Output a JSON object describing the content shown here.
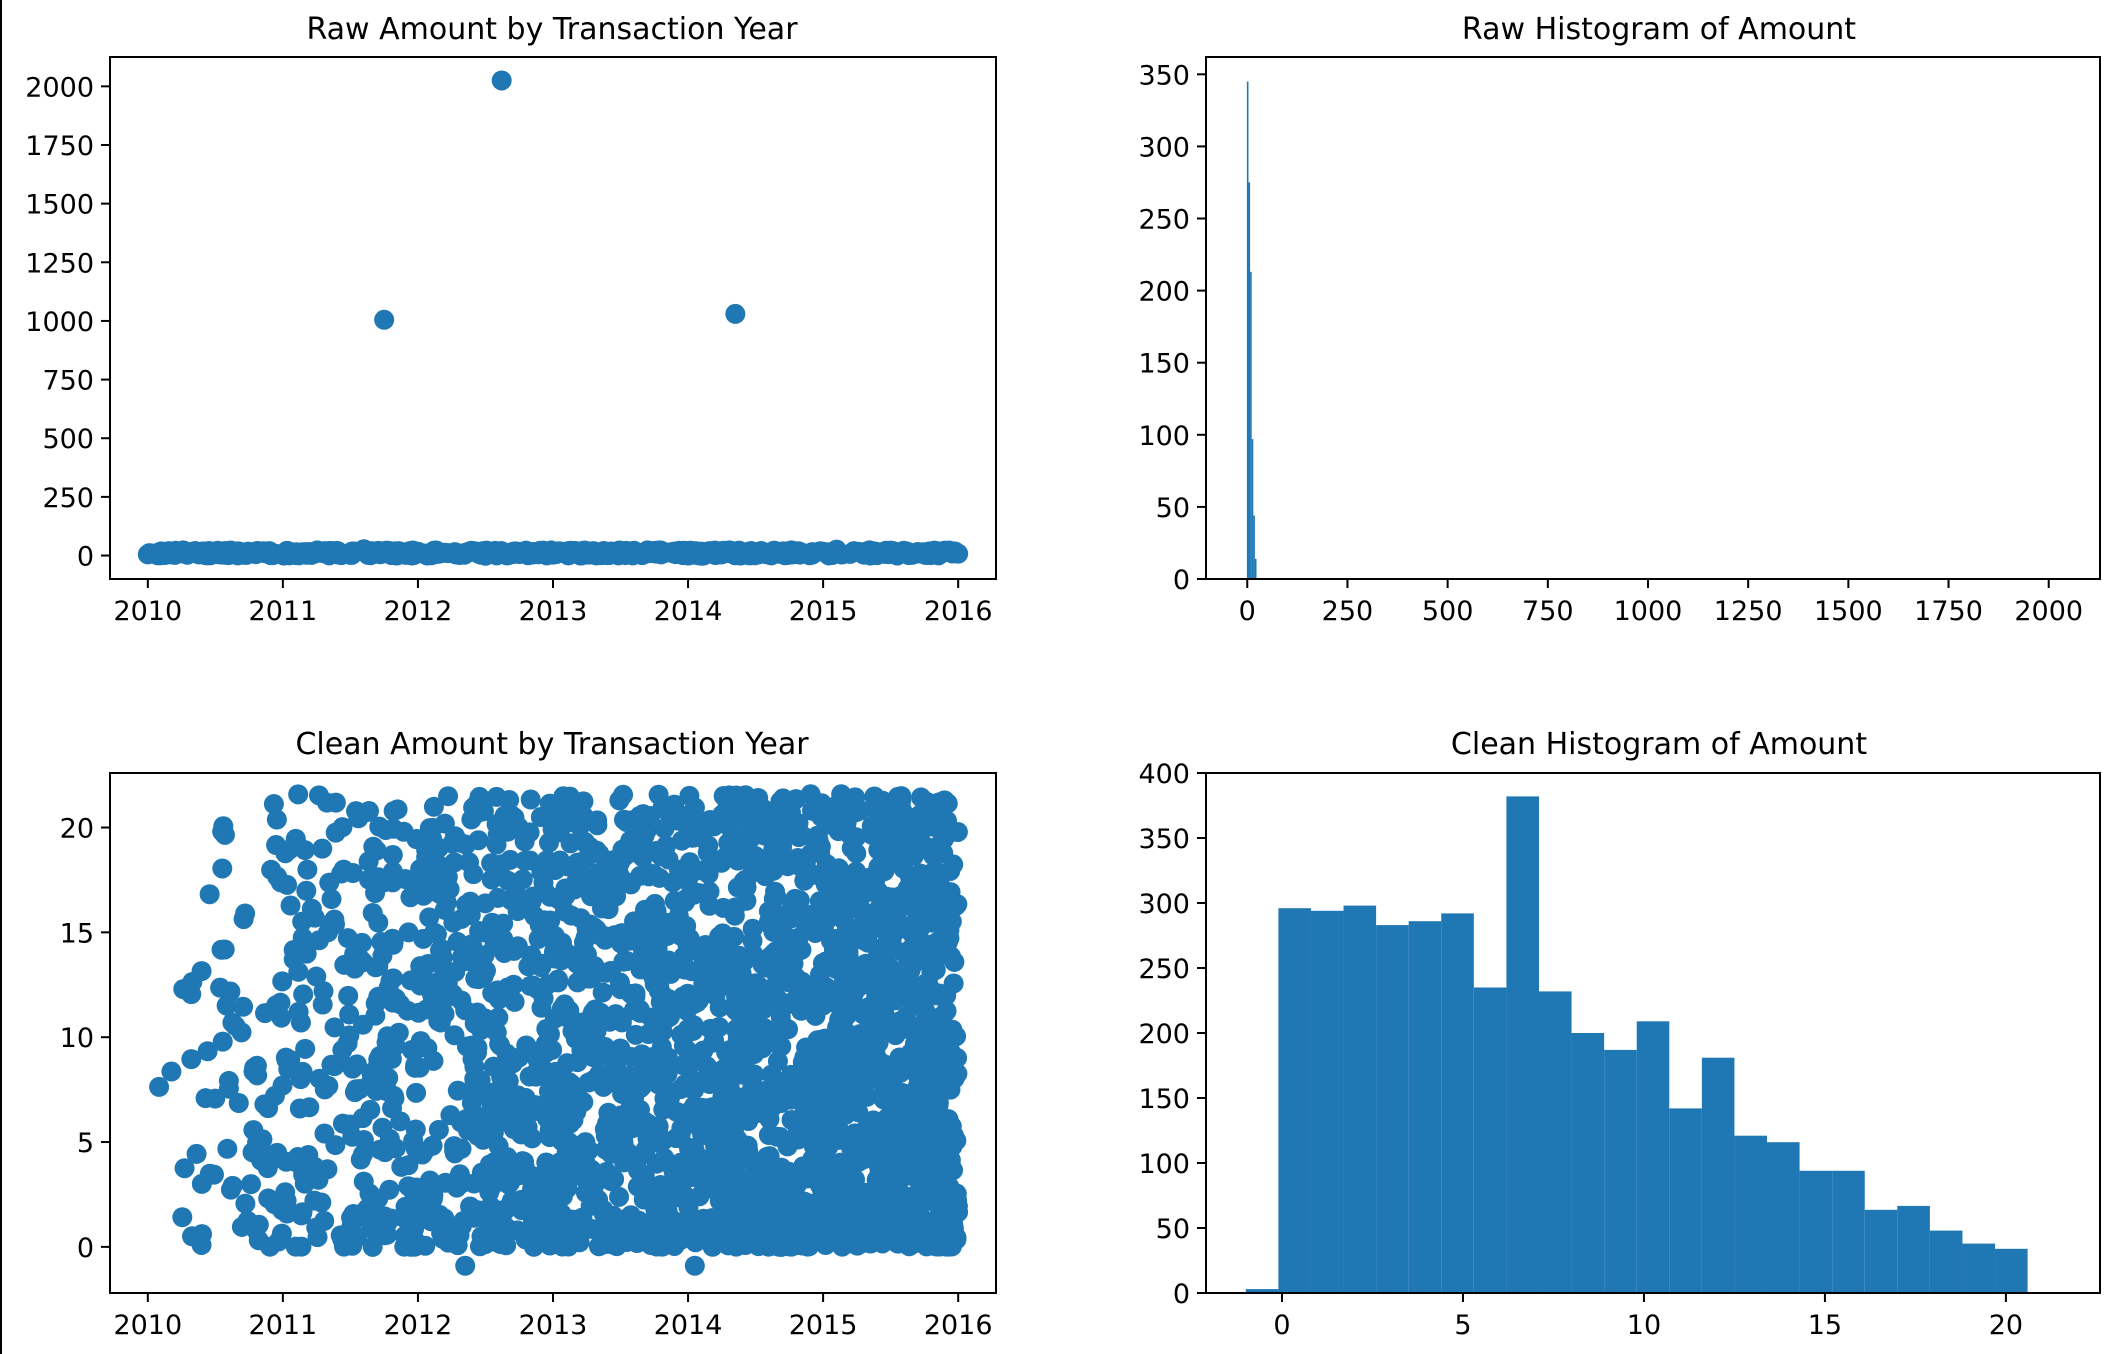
{
  "figure": {
    "bar_color": "#1f77b4",
    "point_color": "#1f77b4",
    "axis_color": "#000000"
  },
  "chart_data": [
    {
      "id": "raw-scatter",
      "type": "scatter",
      "title": "Raw Amount by Transaction Year",
      "xlabel": "",
      "ylabel": "",
      "xlim": [
        2009.72,
        2016.28
      ],
      "ylim": [
        -100,
        2125
      ],
      "xticks": [
        2010,
        2011,
        2012,
        2013,
        2014,
        2015,
        2016
      ],
      "xtick_labels": [
        "2010",
        "2011",
        "2012",
        "2013",
        "2014",
        "2015",
        "2016"
      ],
      "yticks": [
        0,
        250,
        500,
        750,
        1000,
        1250,
        1500,
        1750,
        2000
      ],
      "ytick_labels": [
        "0",
        "250",
        "500",
        "750",
        "1000",
        "1250",
        "1500",
        "1750",
        "2000"
      ],
      "points": [
        {
          "x": 2011.75,
          "y": 1005
        },
        {
          "x": 2012.62,
          "y": 2025
        },
        {
          "x": 2014.35,
          "y": 1030
        },
        {
          "x": 2010.0,
          "y": 5
        },
        {
          "x": 2010.1,
          "y": 18
        },
        {
          "x": 2010.2,
          "y": 3
        },
        {
          "x": 2010.3,
          "y": 12
        },
        {
          "x": 2010.4,
          "y": 8
        },
        {
          "x": 2010.5,
          "y": 15
        },
        {
          "x": 2010.6,
          "y": 2
        },
        {
          "x": 2010.7,
          "y": 10
        },
        {
          "x": 2010.8,
          "y": 6
        },
        {
          "x": 2010.9,
          "y": 19
        },
        {
          "x": 2011.0,
          "y": 4
        },
        {
          "x": 2011.1,
          "y": 14
        },
        {
          "x": 2011.2,
          "y": 7
        },
        {
          "x": 2011.3,
          "y": 11
        },
        {
          "x": 2011.4,
          "y": 20
        },
        {
          "x": 2011.5,
          "y": 3
        },
        {
          "x": 2011.6,
          "y": 27
        },
        {
          "x": 2011.7,
          "y": 9
        },
        {
          "x": 2011.8,
          "y": 13
        },
        {
          "x": 2011.9,
          "y": 5
        },
        {
          "x": 2012.0,
          "y": 16
        },
        {
          "x": 2012.1,
          "y": 1
        },
        {
          "x": 2012.2,
          "y": 12
        },
        {
          "x": 2012.3,
          "y": 8
        },
        {
          "x": 2012.4,
          "y": 18
        },
        {
          "x": 2012.5,
          "y": -1
        },
        {
          "x": 2012.7,
          "y": 6
        },
        {
          "x": 2012.8,
          "y": 21
        },
        {
          "x": 2012.9,
          "y": 10
        },
        {
          "x": 2013.0,
          "y": 4
        },
        {
          "x": 2013.1,
          "y": 15
        },
        {
          "x": 2013.2,
          "y": 7
        },
        {
          "x": 2013.3,
          "y": 19
        },
        {
          "x": 2013.4,
          "y": 2
        },
        {
          "x": 2013.5,
          "y": 13
        },
        {
          "x": 2013.6,
          "y": 9
        },
        {
          "x": 2013.7,
          "y": 22
        },
        {
          "x": 2013.8,
          "y": 5
        },
        {
          "x": 2013.9,
          "y": 17
        },
        {
          "x": 2014.0,
          "y": 11
        },
        {
          "x": 2014.1,
          "y": -1
        },
        {
          "x": 2014.2,
          "y": 8
        },
        {
          "x": 2014.3,
          "y": 20
        },
        {
          "x": 2014.4,
          "y": 3
        },
        {
          "x": 2014.5,
          "y": 14
        },
        {
          "x": 2014.6,
          "y": 6
        },
        {
          "x": 2014.7,
          "y": 18
        },
        {
          "x": 2014.8,
          "y": 10
        },
        {
          "x": 2014.9,
          "y": 1
        },
        {
          "x": 2015.0,
          "y": 16
        },
        {
          "x": 2015.1,
          "y": 25
        },
        {
          "x": 2015.2,
          "y": 7
        },
        {
          "x": 2015.3,
          "y": 12
        },
        {
          "x": 2015.4,
          "y": 4
        },
        {
          "x": 2015.5,
          "y": 19
        },
        {
          "x": 2015.6,
          "y": 9
        },
        {
          "x": 2015.7,
          "y": 15
        },
        {
          "x": 2015.8,
          "y": 2
        },
        {
          "x": 2015.9,
          "y": 21
        },
        {
          "x": 2016.0,
          "y": 8
        }
      ]
    },
    {
      "id": "raw-hist",
      "type": "bar",
      "title": "Raw Histogram of Amount",
      "xlabel": "",
      "ylabel": "",
      "xlim": [
        -103,
        2128
      ],
      "ylim": [
        0,
        362
      ],
      "xticks": [
        0,
        250,
        500,
        750,
        1000,
        1250,
        1500,
        1750,
        2000
      ],
      "xtick_labels": [
        "0",
        "250",
        "500",
        "750",
        "1000",
        "1250",
        "1500",
        "1750",
        "2000"
      ],
      "yticks": [
        0,
        50,
        100,
        150,
        200,
        250,
        300,
        350
      ],
      "ytick_labels": [
        "0",
        "50",
        "100",
        "150",
        "200",
        "250",
        "300",
        "350"
      ],
      "bin_start": -1.0,
      "bin_width": 4.0,
      "values": [
        345,
        275,
        213,
        97,
        44,
        14
      ]
    },
    {
      "id": "clean-scatter",
      "type": "scatter",
      "title": "Clean Amount by Transaction Year",
      "xlabel": "",
      "ylabel": "",
      "xlim": [
        2009.72,
        2016.28
      ],
      "ylim": [
        -2.2,
        22.6
      ],
      "xticks": [
        2010,
        2011,
        2012,
        2013,
        2014,
        2015,
        2016
      ],
      "xtick_labels": [
        "2010",
        "2011",
        "2012",
        "2013",
        "2014",
        "2015",
        "2016"
      ],
      "yticks": [
        0,
        5,
        10,
        15,
        20
      ],
      "ytick_labels": [
        "0",
        "5",
        "10",
        "15",
        "20"
      ],
      "y_range": [
        0,
        21.6
      ],
      "outliers": [
        {
          "x": 2012.35,
          "y": -0.9
        },
        {
          "x": 2014.05,
          "y": -0.9
        }
      ]
    },
    {
      "id": "clean-hist",
      "type": "bar",
      "title": "Clean Histogram of Amount",
      "xlabel": "",
      "ylabel": "",
      "xlim": [
        -2.1,
        22.6
      ],
      "ylim": [
        0,
        400
      ],
      "xticks": [
        0,
        5,
        10,
        15,
        20
      ],
      "xtick_labels": [
        "0",
        "5",
        "10",
        "15",
        "20"
      ],
      "yticks": [
        0,
        50,
        100,
        150,
        200,
        250,
        300,
        350,
        400
      ],
      "ytick_labels": [
        "0",
        "50",
        "100",
        "150",
        "200",
        "250",
        "300",
        "350",
        "400"
      ],
      "bin_start": -1.0,
      "bin_width": 0.9,
      "values": [
        3,
        296,
        294,
        298,
        283,
        286,
        292,
        235,
        382,
        232,
        200,
        187,
        209,
        142,
        181,
        121,
        116,
        94,
        94,
        64,
        67,
        48,
        38,
        34
      ]
    }
  ]
}
